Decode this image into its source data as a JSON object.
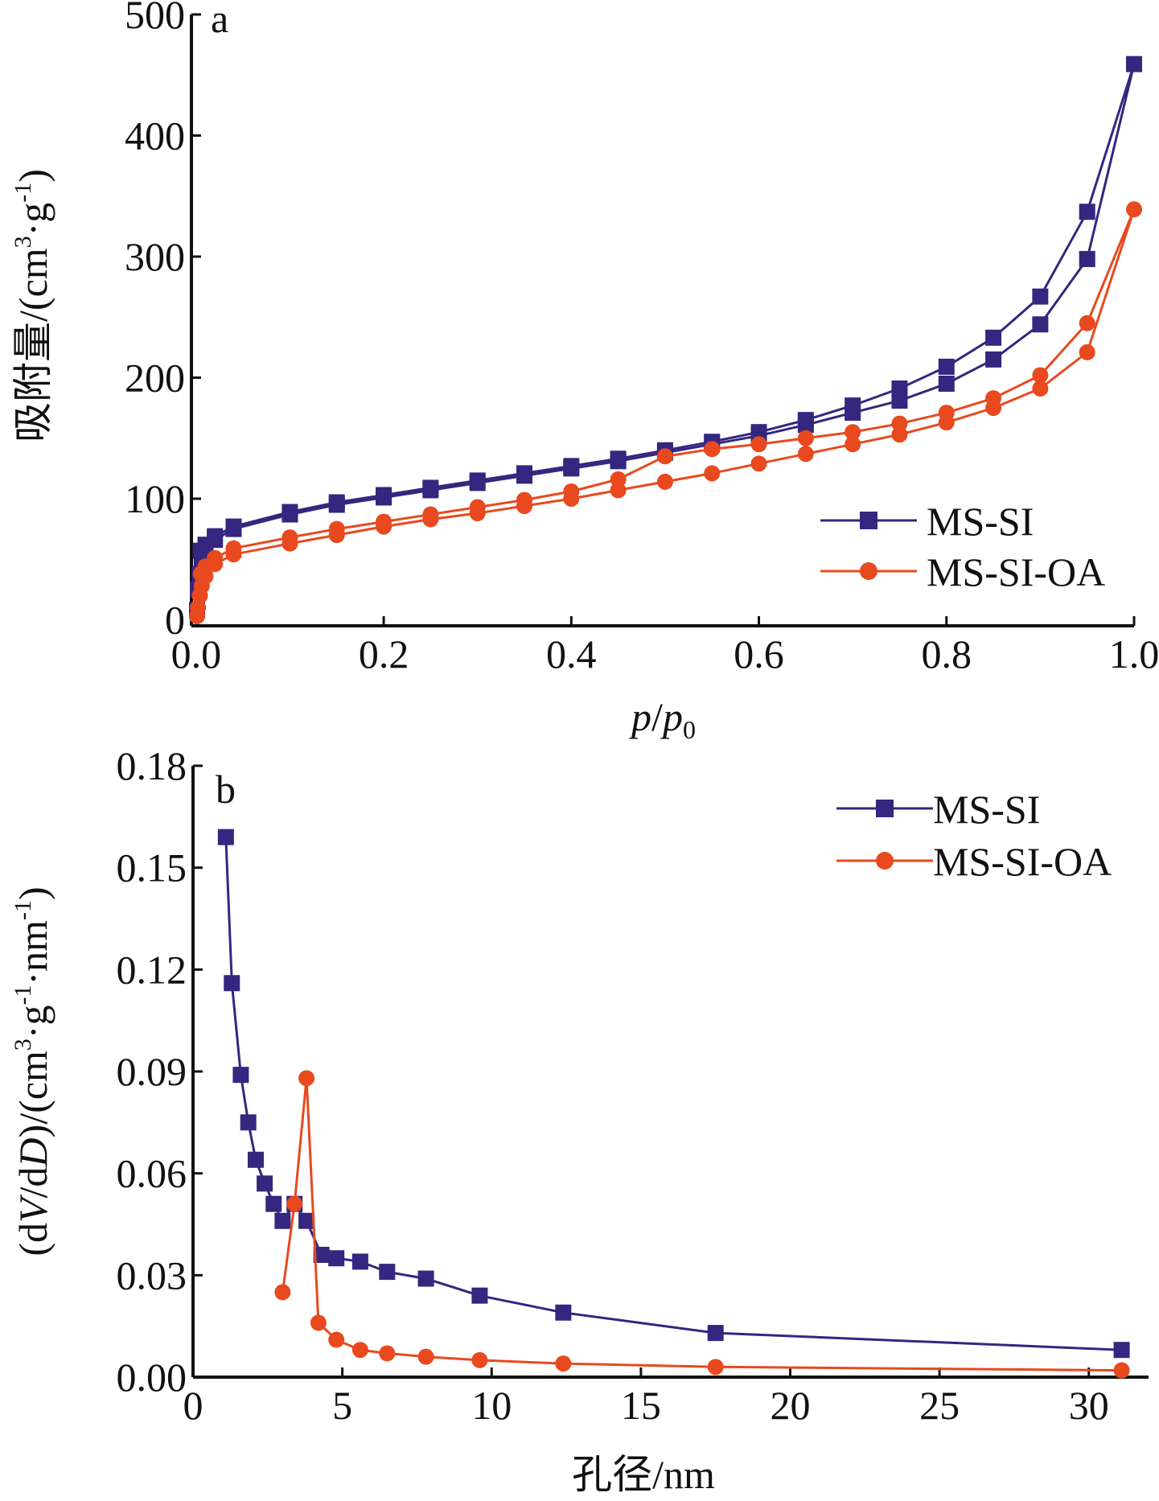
{
  "colors": {
    "ms_si": "#35267F",
    "ms_si_oa": "#E8491E",
    "axis": "#111111"
  },
  "chart_data": [
    {
      "type": "line",
      "panel": "a",
      "xlabel": "p/p0",
      "xlabel_parts": {
        "p1": "p",
        "slash": "/",
        "p2": "p",
        "sub": "0"
      },
      "ylabel": "吸附量/(cm3·g-1)",
      "ylabel_parts": {
        "main": "吸附量/(cm",
        "sup1": "3",
        "mid": "·g",
        "sup2": "-1",
        "end": ")"
      },
      "xlim": [
        -0.005,
        1.0
      ],
      "ylim": [
        -5,
        500
      ],
      "x_ticks": [
        0.0,
        0.2,
        0.4,
        0.6,
        0.8,
        1.0
      ],
      "x_tick_labels": [
        "0.0",
        "0.2",
        "0.4",
        "0.6",
        "0.8",
        "1.0"
      ],
      "y_ticks": [
        0,
        100,
        200,
        300,
        400,
        500
      ],
      "y_tick_labels": [
        "0",
        "100",
        "200",
        "300",
        "400",
        "500"
      ],
      "legend": {
        "position": "lower-right",
        "entries": [
          "MS-SI",
          "MS-SI-OA"
        ]
      },
      "series": [
        {
          "name": "MS-SI",
          "marker": "square",
          "points": [
            [
              0.001,
              8
            ],
            [
              0.002,
              25
            ],
            [
              0.004,
              38
            ],
            [
              0.006,
              48
            ],
            [
              0.01,
              56
            ],
            [
              0.02,
              66
            ],
            [
              0.04,
              75
            ],
            [
              0.1,
              87
            ],
            [
              0.15,
              95
            ],
            [
              0.2,
              101
            ],
            [
              0.25,
              107
            ],
            [
              0.3,
              113
            ],
            [
              0.35,
              119
            ],
            [
              0.4,
              125
            ],
            [
              0.45,
              131
            ],
            [
              0.5,
              138
            ],
            [
              0.55,
              145
            ],
            [
              0.6,
              152
            ],
            [
              0.65,
              161
            ],
            [
              0.7,
              171
            ],
            [
              0.75,
              181
            ],
            [
              0.8,
              195
            ],
            [
              0.85,
              215
            ],
            [
              0.9,
              244
            ],
            [
              0.95,
              298
            ],
            [
              1.0,
              459
            ],
            [
              0.95,
              337
            ],
            [
              0.9,
              267
            ],
            [
              0.85,
              233
            ],
            [
              0.8,
              209
            ],
            [
              0.75,
              191
            ],
            [
              0.7,
              177
            ],
            [
              0.65,
              165
            ],
            [
              0.6,
              155
            ],
            [
              0.55,
              147
            ],
            [
              0.5,
              140
            ],
            [
              0.45,
              133
            ],
            [
              0.4,
              127
            ],
            [
              0.35,
              121
            ],
            [
              0.3,
              115
            ],
            [
              0.25,
              109
            ],
            [
              0.2,
              103
            ],
            [
              0.15,
              97
            ],
            [
              0.1,
              89
            ],
            [
              0.04,
              77
            ],
            [
              0.02,
              69
            ],
            [
              0.01,
              62
            ],
            [
              0.005,
              57
            ]
          ]
        },
        {
          "name": "MS-SI-OA",
          "marker": "circle",
          "points": [
            [
              0.001,
              3
            ],
            [
              0.002,
              10
            ],
            [
              0.004,
              20
            ],
            [
              0.006,
              28
            ],
            [
              0.01,
              36
            ],
            [
              0.02,
              46
            ],
            [
              0.04,
              54
            ],
            [
              0.1,
              63
            ],
            [
              0.15,
              70
            ],
            [
              0.2,
              77
            ],
            [
              0.25,
              83
            ],
            [
              0.3,
              88
            ],
            [
              0.35,
              94
            ],
            [
              0.4,
              100
            ],
            [
              0.45,
              107
            ],
            [
              0.5,
              114
            ],
            [
              0.55,
              121
            ],
            [
              0.6,
              129
            ],
            [
              0.65,
              137
            ],
            [
              0.7,
              145
            ],
            [
              0.75,
              153
            ],
            [
              0.8,
              163
            ],
            [
              0.85,
              175
            ],
            [
              0.9,
              191
            ],
            [
              0.95,
              221
            ],
            [
              1.0,
              339
            ],
            [
              0.95,
              245
            ],
            [
              0.9,
              202
            ],
            [
              0.85,
              183
            ],
            [
              0.8,
              171
            ],
            [
              0.75,
              162
            ],
            [
              0.7,
              155
            ],
            [
              0.65,
              150
            ],
            [
              0.6,
              145
            ],
            [
              0.55,
              141
            ],
            [
              0.5,
              135
            ],
            [
              0.45,
              116
            ],
            [
              0.4,
              106
            ],
            [
              0.35,
              99
            ],
            [
              0.3,
              93
            ],
            [
              0.25,
              87
            ],
            [
              0.2,
              81
            ],
            [
              0.15,
              75
            ],
            [
              0.1,
              68
            ],
            [
              0.04,
              59
            ],
            [
              0.02,
              51
            ],
            [
              0.01,
              44
            ],
            [
              0.005,
              38
            ]
          ]
        }
      ]
    },
    {
      "type": "line",
      "panel": "b",
      "xlabel": "孔径/nm",
      "ylabel": "(dV/dD)/(cm3·g-1·nm-1)",
      "ylabel_parts": {
        "a": "(d",
        "V": "V",
        "b": "/d",
        "D": "D",
        "c": ")/(cm",
        "sup1": "3",
        "d": "·g",
        "sup2": "-1",
        "e": "·nm",
        "sup3": "-1",
        "f": ")"
      },
      "xlim": [
        0,
        32
      ],
      "ylim": [
        0,
        0.18
      ],
      "x_ticks": [
        0,
        5,
        10,
        15,
        20,
        25,
        30
      ],
      "x_tick_labels": [
        "0",
        "5",
        "10",
        "15",
        "20",
        "25",
        "30"
      ],
      "y_ticks": [
        0,
        0.03,
        0.06,
        0.09,
        0.12,
        0.15,
        0.18
      ],
      "y_tick_labels": [
        "0.00",
        "0.03",
        "0.06",
        "0.09",
        "0.12",
        "0.15",
        "0.18"
      ],
      "legend": {
        "position": "upper-right",
        "entries": [
          "MS-SI",
          "MS-SI-OA"
        ]
      },
      "series": [
        {
          "name": "MS-SI",
          "marker": "square",
          "points": [
            [
              1.1,
              0.159
            ],
            [
              1.3,
              0.116
            ],
            [
              1.6,
              0.089
            ],
            [
              1.85,
              0.075
            ],
            [
              2.1,
              0.064
            ],
            [
              2.4,
              0.057
            ],
            [
              2.7,
              0.051
            ],
            [
              3.0,
              0.046
            ],
            [
              3.4,
              0.051
            ],
            [
              3.8,
              0.046
            ],
            [
              4.3,
              0.036
            ],
            [
              4.8,
              0.035
            ],
            [
              5.6,
              0.034
            ],
            [
              6.5,
              0.031
            ],
            [
              7.8,
              0.029
            ],
            [
              9.6,
              0.024
            ],
            [
              12.4,
              0.019
            ],
            [
              17.5,
              0.013
            ],
            [
              31.1,
              0.008
            ]
          ]
        },
        {
          "name": "MS-SI-OA",
          "marker": "circle",
          "points": [
            [
              3.0,
              0.025
            ],
            [
              3.4,
              0.051
            ],
            [
              3.8,
              0.088
            ],
            [
              4.2,
              0.016
            ],
            [
              4.8,
              0.011
            ],
            [
              5.6,
              0.008
            ],
            [
              6.5,
              0.007
            ],
            [
              7.8,
              0.006
            ],
            [
              9.6,
              0.005
            ],
            [
              12.4,
              0.004
            ],
            [
              17.5,
              0.003
            ],
            [
              31.1,
              0.002
            ]
          ]
        }
      ]
    }
  ]
}
